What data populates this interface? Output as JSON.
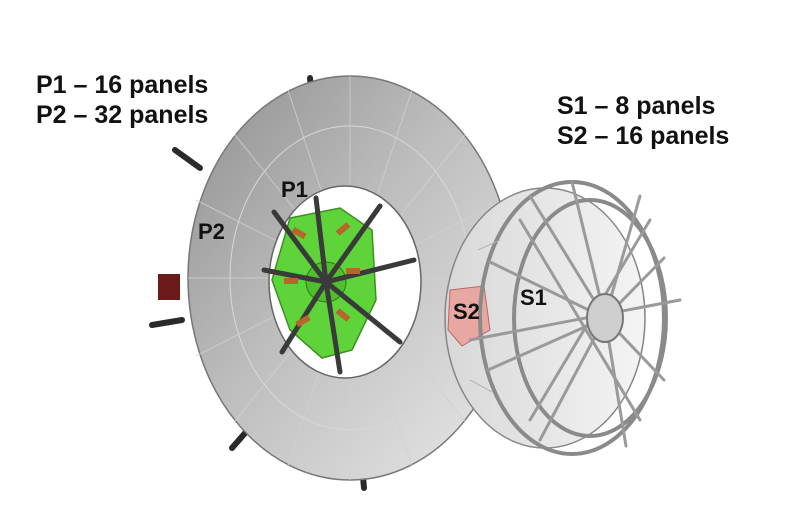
{
  "captions": {
    "primary": [
      "P1 – 16 panels",
      "P2 – 32 panels"
    ],
    "secondary": [
      "S1 – 8 panels",
      "S2 – 16 panels"
    ]
  },
  "labels": {
    "p1": "P1",
    "p2": "P2",
    "s1": "S1",
    "s2": "S2"
  },
  "colors": {
    "primary_disc": "#9c9c9c",
    "inner_core": "#5fd33a",
    "secondary_panel": "#e8a7a0",
    "frame": "#8a8a8a"
  }
}
